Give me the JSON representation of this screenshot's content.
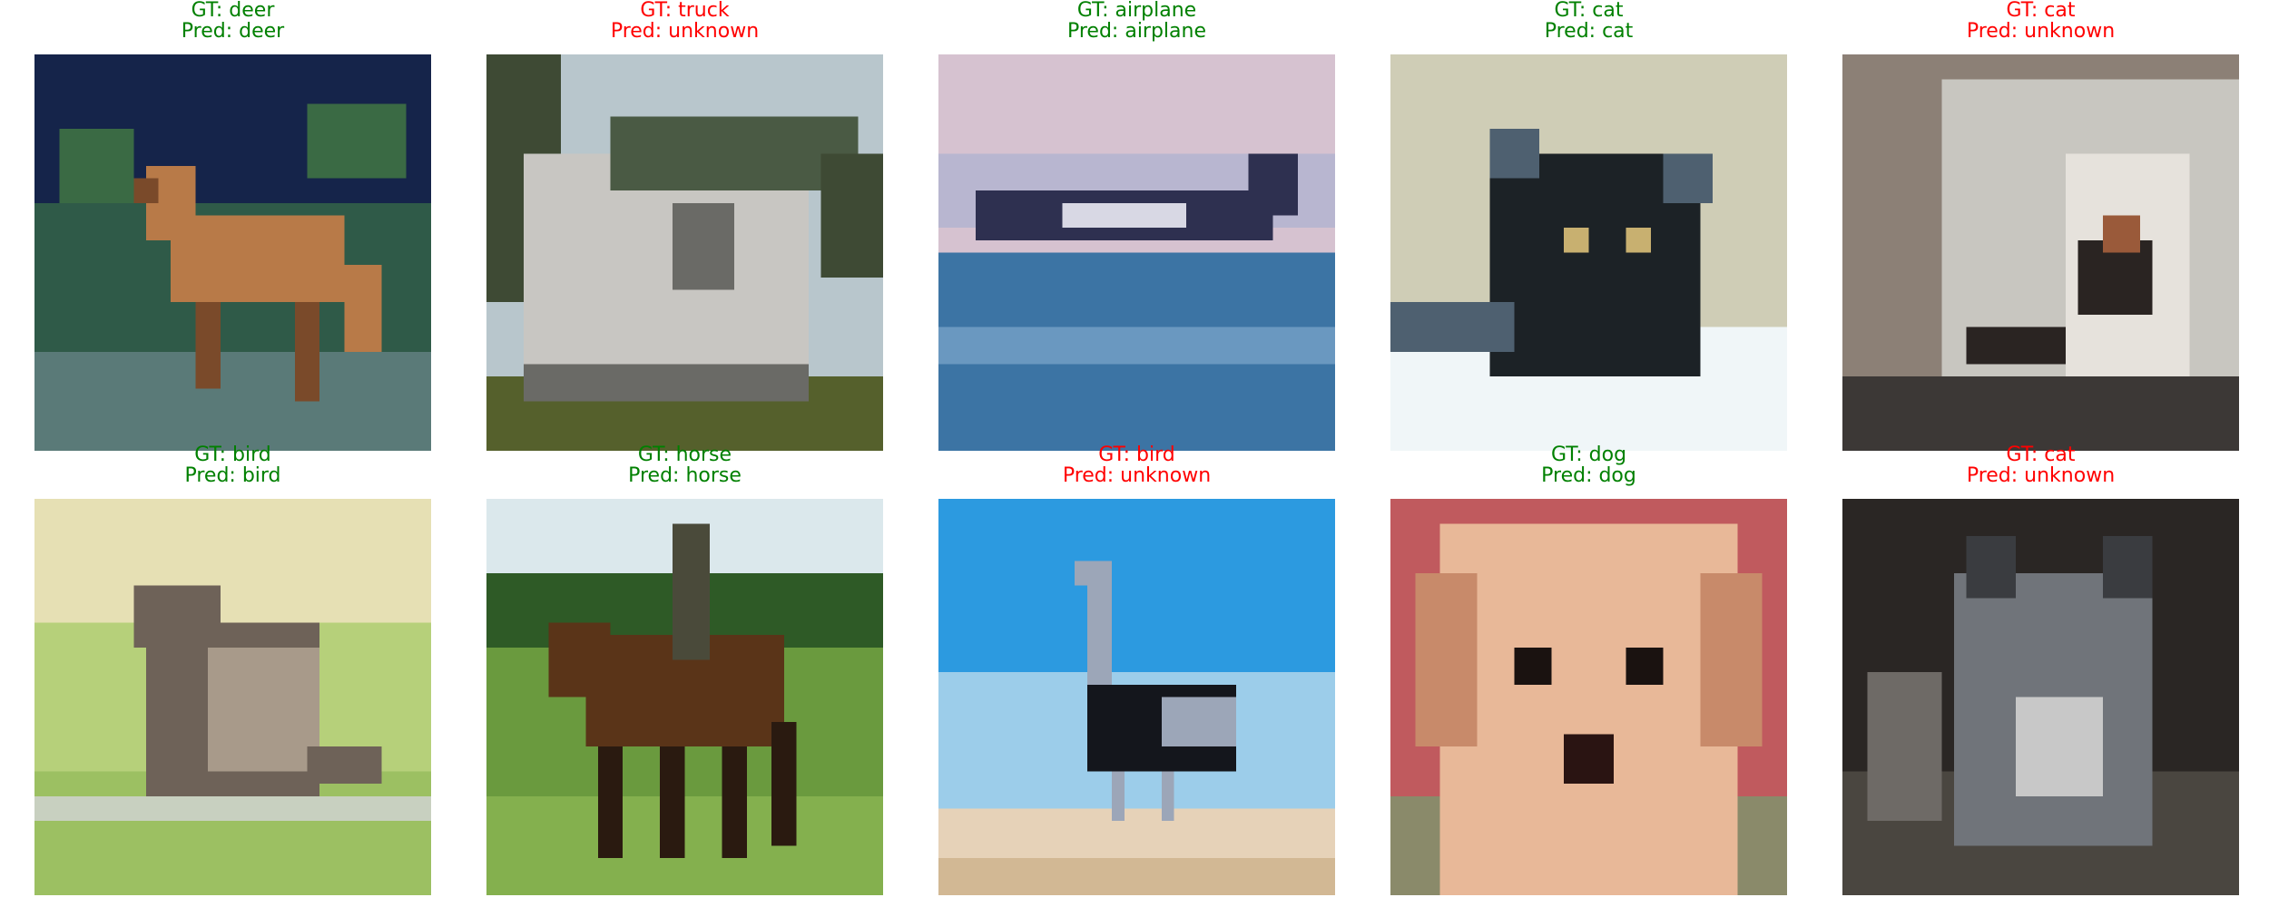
{
  "figure": {
    "colors": {
      "correct": "#008000",
      "incorrect": "#ff0000"
    },
    "panels": [
      {
        "gt": "GT: deer",
        "pred": "Pred: deer",
        "correct": true,
        "image": {
          "subject": "deer",
          "palette": {
            "sky": "#15244a",
            "ground": "#2f5a48",
            "ground2": "#5a7a78",
            "body": "#b87a48",
            "body_dark": "#7a4a2a",
            "leaves": "#3a6a44"
          }
        }
      },
      {
        "gt": "GT: truck",
        "pred": "Pred: unknown",
        "correct": false,
        "image": {
          "subject": "truck",
          "palette": {
            "sky": "#b8c6cc",
            "ground": "#55602c",
            "body": "#c8c6c2",
            "body_dark": "#6a6a66",
            "roof": "#4a5a44",
            "trees": "#3e4a34"
          }
        }
      },
      {
        "gt": "GT: airplane",
        "pred": "Pred: airplane",
        "correct": true,
        "image": {
          "subject": "airplane",
          "palette": {
            "sky": "#d6c2d0",
            "sky2": "#b8b6d0",
            "water": "#3c74a4",
            "water2": "#6a98c0",
            "plane": "#2e3050",
            "plane_light": "#d8d8e4"
          }
        }
      },
      {
        "gt": "GT: cat",
        "pred": "Pred: cat",
        "correct": true,
        "image": {
          "subject": "cat",
          "palette": {
            "bg": "#cfcdb6",
            "bg2": "#e6e8dc",
            "body": "#1c2226",
            "body_light": "#4e6070",
            "blanket": "#f0f6f8",
            "eye": "#c8b070"
          }
        }
      },
      {
        "gt": "GT: cat",
        "pred": "Pred: unknown",
        "correct": false,
        "image": {
          "subject": "cat",
          "palette": {
            "bg": "#8c8076",
            "bg2": "#c8c6c0",
            "floor": "#3c3836",
            "body": "#2a2422",
            "body_light": "#e6e2dc",
            "patch": "#9a5a3a"
          }
        }
      },
      {
        "gt": "GT: bird",
        "pred": "Pred: bird",
        "correct": true,
        "image": {
          "subject": "bird",
          "palette": {
            "bg": "#e6e0b4",
            "bg2": "#b6d07a",
            "bg3": "#9cc062",
            "body": "#6e6258",
            "body_light": "#a89a8a",
            "branch": "#c8d0c0"
          }
        }
      },
      {
        "gt": "GT: horse",
        "pred": "Pred: horse",
        "correct": true,
        "image": {
          "subject": "horse",
          "palette": {
            "sky": "#dbe8ec",
            "trees": "#2e5a26",
            "grass": "#6a9a3e",
            "grass2": "#84b04e",
            "body": "#5a3418",
            "body_dark": "#2a1a10",
            "rider": "#4a4a3a"
          }
        }
      },
      {
        "gt": "GT: bird",
        "pred": "Pred: unknown",
        "correct": false,
        "image": {
          "subject": "ostrich",
          "palette": {
            "sky": "#2c9ae0",
            "sky2": "#9ccdea",
            "sand": "#e6d2b8",
            "sand2": "#d2b894",
            "body": "#14161c",
            "body_light": "#9ca6b8"
          }
        }
      },
      {
        "gt": "GT: dog",
        "pred": "Pred: dog",
        "correct": true,
        "image": {
          "subject": "dog",
          "palette": {
            "bg": "#c05a5e",
            "bg2": "#8a8a6a",
            "fur": "#e8b898",
            "fur_dark": "#c88a6a",
            "eye": "#1a1210",
            "nose": "#2a1412"
          }
        }
      },
      {
        "gt": "GT: cat",
        "pred": "Pred: unknown",
        "correct": false,
        "image": {
          "subject": "cat",
          "palette": {
            "bg": "#2a2624",
            "bg2": "#6e6a66",
            "body": "#70747a",
            "body_dark": "#3a3c40",
            "chest": "#c8c8c8",
            "floor": "#4a4640"
          }
        }
      }
    ]
  }
}
